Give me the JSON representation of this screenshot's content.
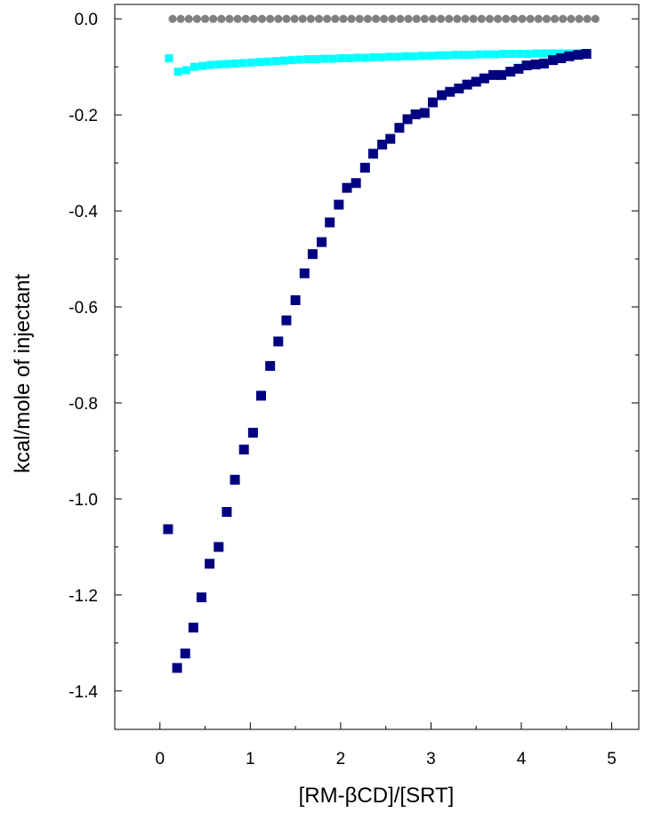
{
  "chart_data": {
    "type": "scatter",
    "title": "",
    "xlabel": "[RM-βCD]/[SRT]",
    "ylabel": "kcal/mole of injectant",
    "xlim": [
      -0.5,
      5.3
    ],
    "ylim": [
      -1.48,
      0.03
    ],
    "x_ticks": [
      0,
      1,
      2,
      3,
      4,
      5
    ],
    "x_tick_labels": [
      "0",
      "1",
      "2",
      "3",
      "4",
      "5"
    ],
    "y_ticks": [
      0.0,
      -0.2,
      -0.4,
      -0.6,
      -0.8,
      -1.0,
      -1.2,
      -1.4
    ],
    "y_tick_labels": [
      "0.0",
      "-0.2",
      "-0.4",
      "-0.6",
      "-0.8",
      "-1.0",
      "-1.2",
      "-1.4"
    ],
    "grid": false,
    "legend": "none",
    "series": [
      {
        "marker": "circle",
        "color": "#808080",
        "points": [
          [
            0.14,
            0.0
          ],
          [
            0.23,
            0.0
          ],
          [
            0.32,
            0.0
          ],
          [
            0.41,
            0.0
          ],
          [
            0.5,
            0.0
          ],
          [
            0.59,
            0.0
          ],
          [
            0.68,
            0.0
          ],
          [
            0.77,
            0.0
          ],
          [
            0.86,
            0.0
          ],
          [
            0.95,
            0.0
          ],
          [
            1.04,
            0.0
          ],
          [
            1.13,
            0.0
          ],
          [
            1.22,
            0.0
          ],
          [
            1.31,
            0.0
          ],
          [
            1.4,
            0.0
          ],
          [
            1.49,
            0.0
          ],
          [
            1.58,
            0.0
          ],
          [
            1.67,
            0.0
          ],
          [
            1.76,
            0.0
          ],
          [
            1.85,
            0.0
          ],
          [
            1.94,
            0.0
          ],
          [
            2.03,
            0.0
          ],
          [
            2.12,
            0.0
          ],
          [
            2.21,
            0.0
          ],
          [
            2.3,
            0.0
          ],
          [
            2.39,
            0.0
          ],
          [
            2.48,
            0.0
          ],
          [
            2.57,
            0.0
          ],
          [
            2.66,
            0.0
          ],
          [
            2.75,
            0.0
          ],
          [
            2.84,
            0.0
          ],
          [
            2.93,
            0.0
          ],
          [
            3.02,
            0.0
          ],
          [
            3.11,
            0.0
          ],
          [
            3.2,
            0.0
          ],
          [
            3.29,
            0.0
          ],
          [
            3.38,
            0.0
          ],
          [
            3.47,
            0.0
          ],
          [
            3.56,
            0.0
          ],
          [
            3.65,
            0.0
          ],
          [
            3.74,
            0.0
          ],
          [
            3.83,
            0.0
          ],
          [
            3.92,
            0.0
          ],
          [
            4.01,
            0.0
          ],
          [
            4.1,
            0.0
          ],
          [
            4.19,
            0.0
          ],
          [
            4.28,
            0.0
          ],
          [
            4.37,
            0.0
          ],
          [
            4.46,
            0.0
          ],
          [
            4.55,
            0.0
          ],
          [
            4.64,
            0.0
          ],
          [
            4.73,
            0.0
          ],
          [
            4.82,
            0.0
          ]
        ]
      },
      {
        "marker": "square-small",
        "color": "#00ffff",
        "points": [
          [
            0.1,
            -0.082
          ],
          [
            0.2,
            -0.11
          ],
          [
            0.29,
            -0.107
          ],
          [
            0.38,
            -0.1
          ],
          [
            0.47,
            -0.098
          ],
          [
            0.56,
            -0.096
          ],
          [
            0.65,
            -0.095
          ],
          [
            0.74,
            -0.094
          ],
          [
            0.83,
            -0.093
          ],
          [
            0.92,
            -0.092
          ],
          [
            1.01,
            -0.091
          ],
          [
            1.1,
            -0.09
          ],
          [
            1.19,
            -0.089
          ],
          [
            1.28,
            -0.088
          ],
          [
            1.37,
            -0.087
          ],
          [
            1.46,
            -0.086
          ],
          [
            1.55,
            -0.085
          ],
          [
            1.64,
            -0.084
          ],
          [
            1.73,
            -0.084
          ],
          [
            1.82,
            -0.083
          ],
          [
            1.91,
            -0.083
          ],
          [
            2.0,
            -0.082
          ],
          [
            2.09,
            -0.082
          ],
          [
            2.18,
            -0.081
          ],
          [
            2.27,
            -0.081
          ],
          [
            2.36,
            -0.08
          ],
          [
            2.45,
            -0.08
          ],
          [
            2.54,
            -0.079
          ],
          [
            2.63,
            -0.079
          ],
          [
            2.72,
            -0.078
          ],
          [
            2.81,
            -0.078
          ],
          [
            2.9,
            -0.077
          ],
          [
            2.99,
            -0.077
          ],
          [
            3.08,
            -0.076
          ],
          [
            3.17,
            -0.076
          ],
          [
            3.26,
            -0.075
          ],
          [
            3.35,
            -0.075
          ],
          [
            3.44,
            -0.075
          ],
          [
            3.53,
            -0.074
          ],
          [
            3.62,
            -0.074
          ],
          [
            3.71,
            -0.074
          ],
          [
            3.8,
            -0.073
          ],
          [
            3.89,
            -0.073
          ],
          [
            3.98,
            -0.073
          ],
          [
            4.07,
            -0.073
          ],
          [
            4.16,
            -0.072
          ],
          [
            4.25,
            -0.072
          ],
          [
            4.34,
            -0.072
          ],
          [
            4.43,
            -0.072
          ],
          [
            4.52,
            -0.072
          ],
          [
            4.61,
            -0.072
          ],
          [
            4.7,
            -0.071
          ]
        ]
      },
      {
        "marker": "square",
        "color": "#000080",
        "points": [
          [
            0.09,
            -1.063
          ],
          [
            0.19,
            -1.352
          ],
          [
            0.28,
            -1.322
          ],
          [
            0.37,
            -1.268
          ],
          [
            0.46,
            -1.205
          ],
          [
            0.55,
            -1.135
          ],
          [
            0.65,
            -1.1
          ],
          [
            0.74,
            -1.027
          ],
          [
            0.83,
            -0.96
          ],
          [
            0.93,
            -0.897
          ],
          [
            1.03,
            -0.862
          ],
          [
            1.12,
            -0.785
          ],
          [
            1.22,
            -0.723
          ],
          [
            1.31,
            -0.672
          ],
          [
            1.4,
            -0.628
          ],
          [
            1.5,
            -0.586
          ],
          [
            1.6,
            -0.53
          ],
          [
            1.69,
            -0.49
          ],
          [
            1.79,
            -0.465
          ],
          [
            1.88,
            -0.424
          ],
          [
            1.98,
            -0.387
          ],
          [
            2.07,
            -0.352
          ],
          [
            2.17,
            -0.342
          ],
          [
            2.27,
            -0.31
          ],
          [
            2.36,
            -0.281
          ],
          [
            2.46,
            -0.262
          ],
          [
            2.55,
            -0.25
          ],
          [
            2.65,
            -0.227
          ],
          [
            2.74,
            -0.209
          ],
          [
            2.83,
            -0.199
          ],
          [
            2.93,
            -0.196
          ],
          [
            3.02,
            -0.174
          ],
          [
            3.12,
            -0.159
          ],
          [
            3.21,
            -0.152
          ],
          [
            3.31,
            -0.145
          ],
          [
            3.4,
            -0.137
          ],
          [
            3.5,
            -0.131
          ],
          [
            3.59,
            -0.124
          ],
          [
            3.69,
            -0.117
          ],
          [
            3.78,
            -0.117
          ],
          [
            3.88,
            -0.11
          ],
          [
            3.97,
            -0.104
          ],
          [
            4.06,
            -0.097
          ],
          [
            4.16,
            -0.095
          ],
          [
            4.25,
            -0.093
          ],
          [
            4.35,
            -0.086
          ],
          [
            4.44,
            -0.082
          ],
          [
            4.53,
            -0.078
          ],
          [
            4.63,
            -0.075
          ],
          [
            4.72,
            -0.073
          ]
        ]
      }
    ]
  }
}
